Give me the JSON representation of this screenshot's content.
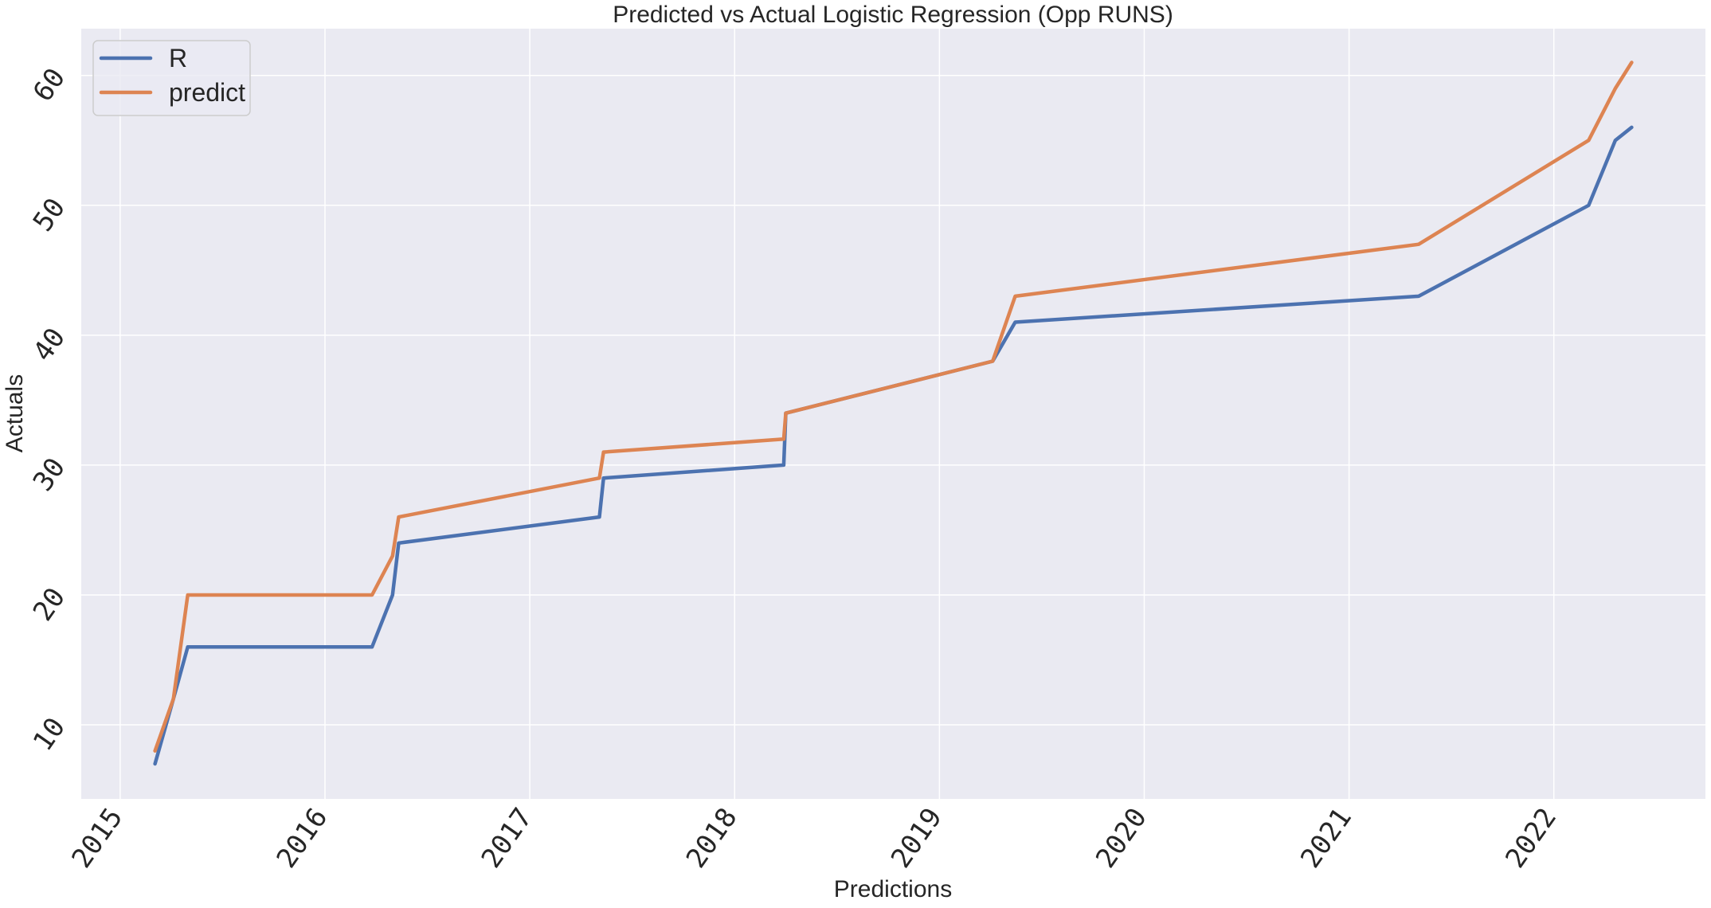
{
  "chart_data": {
    "type": "line",
    "title": "Predicted vs Actual Logistic Regression (Opp RUNS)",
    "xlabel": "Predictions",
    "ylabel": "Actuals",
    "x_tick_labels": [
      "2015",
      "2016",
      "2017",
      "2018",
      "2019",
      "2020",
      "2021",
      "2022"
    ],
    "y_tick_labels": [
      "10",
      "20",
      "30",
      "40",
      "50",
      "60"
    ],
    "xlim": [
      2014.81,
      2022.74
    ],
    "ylim": [
      4.3,
      63.6
    ],
    "grid": true,
    "legend_position": "upper left",
    "x": [
      2015.17,
      2015.26,
      2015.33,
      2016.23,
      2016.33,
      2016.36,
      2017.34,
      2017.36,
      2018.24,
      2018.25,
      2019.26,
      2019.37,
      2021.34,
      2022.17,
      2022.3,
      2022.38
    ],
    "series": [
      {
        "name": "R",
        "color": "#4c72b0",
        "values": [
          7,
          12,
          16,
          16,
          20,
          24,
          26,
          29,
          30,
          34,
          38,
          41,
          43,
          50,
          55,
          56
        ]
      },
      {
        "name": "predict",
        "color": "#dd8452",
        "values": [
          8,
          12,
          20,
          20,
          23,
          26,
          29,
          31,
          32,
          34,
          38,
          43,
          47,
          55,
          59,
          61
        ]
      }
    ]
  },
  "style": {
    "plot_bg": "#eaeaf2",
    "grid_color": "#ffffff",
    "legend_bg": "#eaeaf2",
    "legend_border": "#cccccc"
  }
}
